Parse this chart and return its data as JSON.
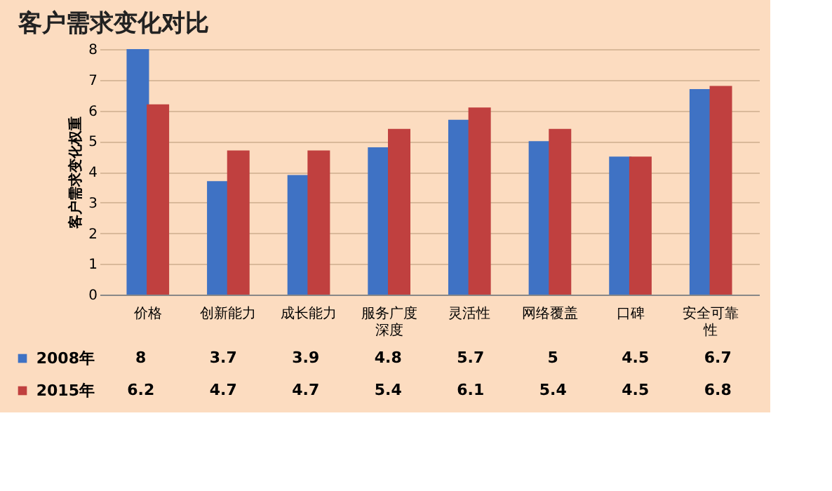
{
  "chart_data": {
    "type": "bar",
    "title": "客户需求变化对比",
    "ylabel": "客户需求变化权重",
    "categories": [
      "价格",
      "创新能力",
      "成长能力",
      "服务广度深度",
      "灵活性",
      "网络覆盖",
      "口碑",
      "安全可靠性"
    ],
    "series": [
      {
        "name": "2008年",
        "color": "#3f72c4",
        "values": [
          8,
          3.7,
          3.9,
          4.8,
          5.7,
          5,
          4.5,
          6.7
        ]
      },
      {
        "name": "2015年",
        "color": "#c0403f",
        "values": [
          6.2,
          4.7,
          4.7,
          5.4,
          6.1,
          5.4,
          4.5,
          6.8
        ]
      }
    ],
    "ylim": [
      0,
      8
    ],
    "yticks": [
      0,
      1,
      2,
      3,
      4,
      5,
      6,
      7,
      8
    ],
    "grid": "y",
    "data_labels": true,
    "legend": "bottom"
  }
}
